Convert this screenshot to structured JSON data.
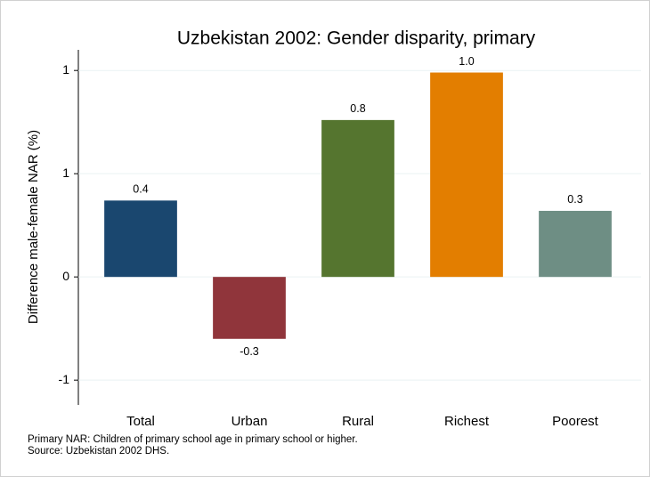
{
  "chart_data": {
    "type": "bar",
    "title": "Uzbekistan 2002: Gender disparity, primary",
    "y_label": "Difference male-female NAR (%)",
    "categories": [
      "Total",
      "Urban",
      "Rural",
      "Richest",
      "Poorest"
    ],
    "values": [
      0.37,
      -0.3,
      0.76,
      0.99,
      0.32
    ],
    "value_labels": [
      "0.4",
      "-0.3",
      "0.8",
      "1.0",
      "0.3"
    ],
    "colors": [
      "#1a476f",
      "#90353b",
      "#55752f",
      "#e37e00",
      "#6e8e84"
    ],
    "ylim": [
      -0.62,
      1.1
    ],
    "yticks": [
      {
        "value": -0.5,
        "label": "-1"
      },
      0,
      {
        "value": 0.5,
        "label": "1"
      },
      1
    ],
    "grid": true,
    "notes": [
      "Primary NAR: Children of primary school age in primary school or higher.",
      "Source: Uzbekistan 2002 DHS."
    ]
  }
}
